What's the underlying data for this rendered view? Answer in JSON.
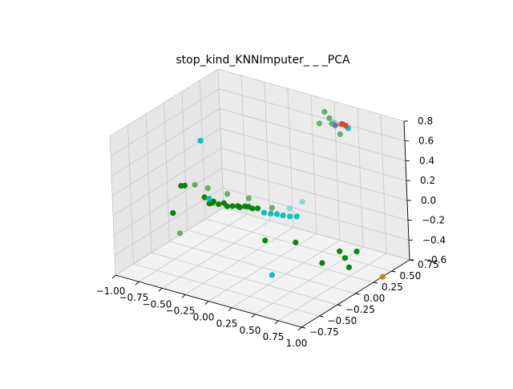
{
  "chart_data": {
    "type": "scatter",
    "projection": "3d",
    "title": "stop_kind_KNNImputer_ _ _PCA",
    "xlabel": "",
    "ylabel": "",
    "zlabel": "",
    "grid": true,
    "legend": "none",
    "xlim": [
      -1.0,
      1.0
    ],
    "ylim": [
      -0.75,
      0.75
    ],
    "zlim": [
      -0.6,
      0.8
    ],
    "x_ticks": [
      "−1.00",
      "−0.75",
      "−0.50",
      "−0.25",
      "0.00",
      "0.25",
      "0.50",
      "0.75",
      "1.00"
    ],
    "y_ticks": [
      "−0.75",
      "−0.50",
      "−0.25",
      "0.00",
      "0.25",
      "0.50",
      "0.75"
    ],
    "z_ticks": [
      "−0.6",
      "−0.4",
      "−0.2",
      "0.0",
      "0.2",
      "0.4",
      "0.6",
      "0.8"
    ],
    "colors": {
      "green": "#008000",
      "cyan": "#00bfbf",
      "red": "#e8401c",
      "gold": "#b8860b",
      "purple": "#8060a0",
      "pane_left": "#e6e6e6",
      "pane_right": "#ebebeb",
      "pane_floor": "#f2f2f2",
      "grid": "#c8c8c8"
    },
    "series": [
      {
        "color": "#008000",
        "points": [
          [
            -0.55,
            0.0,
            -0.1
          ],
          [
            -0.52,
            0.02,
            -0.08
          ],
          [
            -0.5,
            -0.02,
            -0.07
          ],
          [
            -0.45,
            0.0,
            -0.08
          ],
          [
            -0.4,
            0.01,
            -0.06
          ],
          [
            -0.35,
            -0.01,
            -0.07
          ],
          [
            -0.3,
            0.0,
            -0.06
          ],
          [
            -0.25,
            0.01,
            -0.05
          ],
          [
            -0.22,
            0.0,
            -0.05
          ],
          [
            -0.18,
            0.02,
            -0.04
          ],
          [
            -0.15,
            0.03,
            -0.04
          ],
          [
            -0.1,
            0.02,
            -0.04
          ],
          [
            -0.05,
            0.03,
            -0.03
          ],
          [
            -0.95,
            0.0,
            -0.3
          ],
          [
            0.0,
            0.05,
            -0.35
          ],
          [
            0.25,
            0.15,
            -0.35
          ],
          [
            0.45,
            0.25,
            -0.55
          ],
          [
            0.62,
            0.28,
            -0.4
          ],
          [
            0.62,
            0.35,
            -0.5
          ],
          [
            0.75,
            0.35,
            -0.4
          ],
          [
            0.7,
            0.3,
            -0.55
          ],
          [
            -0.85,
            0.0,
            0.0
          ],
          [
            -0.85,
            0.05,
            -0.02
          ],
          [
            -0.6,
            0.0,
            -0.05
          ]
        ]
      },
      {
        "color": "#008000",
        "opacity": 0.55,
        "points": [
          [
            0.3,
            0.55,
            0.8
          ],
          [
            0.35,
            0.55,
            0.75
          ],
          [
            0.28,
            0.5,
            0.7
          ],
          [
            0.4,
            0.52,
            0.72
          ],
          [
            0.45,
            0.58,
            0.7
          ],
          [
            0.5,
            0.5,
            0.65
          ],
          [
            -0.7,
            0.0,
            0.05
          ],
          [
            -0.6,
            0.05,
            0.02
          ],
          [
            -0.35,
            0.0,
            0.05
          ],
          [
            -0.2,
            0.1,
            0.0
          ],
          [
            0.05,
            0.1,
            -0.03
          ],
          [
            -0.9,
            0.02,
            -0.5
          ]
        ]
      },
      {
        "color": "#00bfbf",
        "points": [
          [
            0.0,
            0.05,
            -0.07
          ],
          [
            0.05,
            0.08,
            -0.08
          ],
          [
            0.1,
            0.1,
            -0.08
          ],
          [
            0.15,
            0.12,
            -0.09
          ],
          [
            0.2,
            0.15,
            -0.1
          ],
          [
            0.25,
            0.18,
            -0.1
          ],
          [
            0.55,
            0.55,
            0.7
          ],
          [
            -0.7,
            0.1,
            0.45
          ],
          [
            -0.55,
            0.0,
            -0.05
          ],
          [
            0.1,
            0.0,
            -0.65
          ]
        ]
      },
      {
        "color": "#00bfbf",
        "opacity": 0.4,
        "points": [
          [
            0.3,
            0.2,
            0.05
          ],
          [
            0.2,
            0.15,
            -0.02
          ],
          [
            0.4,
            0.55,
            0.72
          ]
        ]
      },
      {
        "color": "#e8401c",
        "points": [
          [
            0.48,
            0.56,
            0.72
          ],
          [
            0.5,
            0.58,
            0.7
          ]
        ]
      },
      {
        "color": "#b8860b",
        "points": [
          [
            0.82,
            0.6,
            -0.75
          ]
        ]
      },
      {
        "color": "#8060a0",
        "points": [
          [
            0.42,
            0.54,
            0.7
          ]
        ]
      }
    ]
  }
}
